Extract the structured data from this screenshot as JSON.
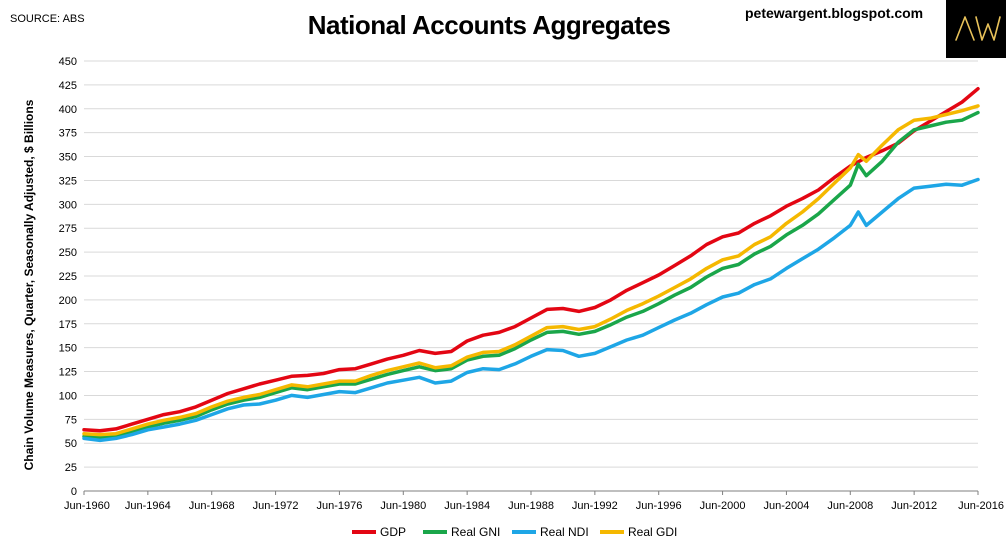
{
  "source": "SOURCE: ABS",
  "title": "National Accounts Aggregates",
  "blog": "petewargent.blogspot.com",
  "logo": "AW",
  "chart_data": {
    "type": "line",
    "title": "National Accounts Aggregates",
    "xlabel": "",
    "ylabel": "Chain Volume Measures, Quarter, Seasonally Adjusted, $ Billions",
    "ylim": [
      0,
      450
    ],
    "xlim": [
      1960,
      2016
    ],
    "yticks": [
      "0",
      "25",
      "50",
      "75",
      "100",
      "125",
      "150",
      "175",
      "200",
      "225",
      "250",
      "275",
      "300",
      "325",
      "350",
      "375",
      "400",
      "425",
      "450"
    ],
    "xticks": [
      "Jun-1960",
      "Jun-1964",
      "Jun-1968",
      "Jun-1972",
      "Jun-1976",
      "Jun-1980",
      "Jun-1984",
      "Jun-1988",
      "Jun-1992",
      "Jun-1996",
      "Jun-2000",
      "Jun-2004",
      "Jun-2008",
      "Jun-2012",
      "Jun-2016"
    ],
    "grid": "horizontal",
    "legend": "bottom",
    "series": [
      {
        "name": "GDP",
        "color": "#e30613",
        "points": [
          [
            1960,
            64
          ],
          [
            1961,
            63
          ],
          [
            1962,
            65
          ],
          [
            1963,
            70
          ],
          [
            1964,
            75
          ],
          [
            1965,
            80
          ],
          [
            1966,
            83
          ],
          [
            1967,
            88
          ],
          [
            1968,
            95
          ],
          [
            1969,
            102
          ],
          [
            1970,
            107
          ],
          [
            1971,
            112
          ],
          [
            1972,
            116
          ],
          [
            1973,
            120
          ],
          [
            1974,
            121
          ],
          [
            1975,
            123
          ],
          [
            1976,
            127
          ],
          [
            1977,
            128
          ],
          [
            1978,
            133
          ],
          [
            1979,
            138
          ],
          [
            1980,
            142
          ],
          [
            1981,
            147
          ],
          [
            1982,
            144
          ],
          [
            1983,
            146
          ],
          [
            1984,
            157
          ],
          [
            1985,
            163
          ],
          [
            1986,
            166
          ],
          [
            1987,
            172
          ],
          [
            1988,
            181
          ],
          [
            1989,
            190
          ],
          [
            1990,
            191
          ],
          [
            1991,
            188
          ],
          [
            1992,
            192
          ],
          [
            1993,
            200
          ],
          [
            1994,
            210
          ],
          [
            1995,
            218
          ],
          [
            1996,
            226
          ],
          [
            1997,
            236
          ],
          [
            1998,
            246
          ],
          [
            1999,
            258
          ],
          [
            2000,
            266
          ],
          [
            2001,
            270
          ],
          [
            2002,
            280
          ],
          [
            2003,
            288
          ],
          [
            2004,
            298
          ],
          [
            2005,
            306
          ],
          [
            2006,
            315
          ],
          [
            2007,
            328
          ],
          [
            2008,
            340
          ],
          [
            2009,
            349
          ],
          [
            2010,
            356
          ],
          [
            2011,
            364
          ],
          [
            2012,
            377
          ],
          [
            2013,
            387
          ],
          [
            2014,
            397
          ],
          [
            2015,
            407
          ],
          [
            2016,
            421
          ]
        ]
      },
      {
        "name": "Real GNI",
        "color": "#1aa64a",
        "points": [
          [
            1960,
            57
          ],
          [
            1961,
            56
          ],
          [
            1962,
            58
          ],
          [
            1963,
            62
          ],
          [
            1964,
            67
          ],
          [
            1965,
            71
          ],
          [
            1966,
            74
          ],
          [
            1967,
            78
          ],
          [
            1968,
            85
          ],
          [
            1969,
            91
          ],
          [
            1970,
            95
          ],
          [
            1971,
            98
          ],
          [
            1972,
            103
          ],
          [
            1973,
            108
          ],
          [
            1974,
            106
          ],
          [
            1975,
            109
          ],
          [
            1976,
            112
          ],
          [
            1977,
            112
          ],
          [
            1978,
            117
          ],
          [
            1979,
            122
          ],
          [
            1980,
            126
          ],
          [
            1981,
            130
          ],
          [
            1982,
            126
          ],
          [
            1983,
            128
          ],
          [
            1984,
            137
          ],
          [
            1985,
            141
          ],
          [
            1986,
            142
          ],
          [
            1987,
            149
          ],
          [
            1988,
            158
          ],
          [
            1989,
            166
          ],
          [
            1990,
            167
          ],
          [
            1991,
            164
          ],
          [
            1992,
            167
          ],
          [
            1993,
            174
          ],
          [
            1994,
            182
          ],
          [
            1995,
            188
          ],
          [
            1996,
            196
          ],
          [
            1997,
            205
          ],
          [
            1998,
            213
          ],
          [
            1999,
            224
          ],
          [
            2000,
            233
          ],
          [
            2001,
            237
          ],
          [
            2002,
            248
          ],
          [
            2003,
            256
          ],
          [
            2004,
            268
          ],
          [
            2005,
            278
          ],
          [
            2006,
            290
          ],
          [
            2007,
            305
          ],
          [
            2008,
            320
          ],
          [
            2008.5,
            342
          ],
          [
            2009,
            330
          ],
          [
            2010,
            345
          ],
          [
            2011,
            365
          ],
          [
            2012,
            378
          ],
          [
            2013,
            382
          ],
          [
            2014,
            386
          ],
          [
            2015,
            388
          ],
          [
            2016,
            396
          ]
        ]
      },
      {
        "name": "Real NDI",
        "color": "#1ea6e6",
        "points": [
          [
            1960,
            55
          ],
          [
            1961,
            53
          ],
          [
            1962,
            55
          ],
          [
            1963,
            59
          ],
          [
            1964,
            64
          ],
          [
            1965,
            67
          ],
          [
            1966,
            70
          ],
          [
            1967,
            74
          ],
          [
            1968,
            80
          ],
          [
            1969,
            86
          ],
          [
            1970,
            90
          ],
          [
            1971,
            91
          ],
          [
            1972,
            95
          ],
          [
            1973,
            100
          ],
          [
            1974,
            98
          ],
          [
            1975,
            101
          ],
          [
            1976,
            104
          ],
          [
            1977,
            103
          ],
          [
            1978,
            108
          ],
          [
            1979,
            113
          ],
          [
            1980,
            116
          ],
          [
            1981,
            119
          ],
          [
            1982,
            113
          ],
          [
            1983,
            115
          ],
          [
            1984,
            124
          ],
          [
            1985,
            128
          ],
          [
            1986,
            127
          ],
          [
            1987,
            133
          ],
          [
            1988,
            141
          ],
          [
            1989,
            148
          ],
          [
            1990,
            147
          ],
          [
            1991,
            141
          ],
          [
            1992,
            144
          ],
          [
            1993,
            151
          ],
          [
            1994,
            158
          ],
          [
            1995,
            163
          ],
          [
            1996,
            171
          ],
          [
            1997,
            179
          ],
          [
            1998,
            186
          ],
          [
            1999,
            195
          ],
          [
            2000,
            203
          ],
          [
            2001,
            207
          ],
          [
            2002,
            216
          ],
          [
            2003,
            222
          ],
          [
            2004,
            233
          ],
          [
            2005,
            243
          ],
          [
            2006,
            253
          ],
          [
            2007,
            265
          ],
          [
            2008,
            278
          ],
          [
            2008.5,
            292
          ],
          [
            2009,
            278
          ],
          [
            2010,
            292
          ],
          [
            2011,
            306
          ],
          [
            2012,
            317
          ],
          [
            2013,
            319
          ],
          [
            2014,
            321
          ],
          [
            2015,
            320
          ],
          [
            2016,
            326
          ]
        ]
      },
      {
        "name": "Real GDI",
        "color": "#f5b800",
        "points": [
          [
            1960,
            60
          ],
          [
            1961,
            59
          ],
          [
            1962,
            60
          ],
          [
            1963,
            65
          ],
          [
            1964,
            70
          ],
          [
            1965,
            74
          ],
          [
            1966,
            77
          ],
          [
            1967,
            81
          ],
          [
            1968,
            88
          ],
          [
            1969,
            94
          ],
          [
            1970,
            98
          ],
          [
            1971,
            101
          ],
          [
            1972,
            106
          ],
          [
            1973,
            111
          ],
          [
            1974,
            109
          ],
          [
            1975,
            112
          ],
          [
            1976,
            115
          ],
          [
            1977,
            115
          ],
          [
            1978,
            121
          ],
          [
            1979,
            126
          ],
          [
            1980,
            130
          ],
          [
            1981,
            134
          ],
          [
            1982,
            129
          ],
          [
            1983,
            131
          ],
          [
            1984,
            140
          ],
          [
            1985,
            145
          ],
          [
            1986,
            146
          ],
          [
            1987,
            153
          ],
          [
            1988,
            162
          ],
          [
            1989,
            171
          ],
          [
            1990,
            172
          ],
          [
            1991,
            169
          ],
          [
            1992,
            172
          ],
          [
            1993,
            180
          ],
          [
            1994,
            189
          ],
          [
            1995,
            196
          ],
          [
            1996,
            204
          ],
          [
            1997,
            213
          ],
          [
            1998,
            222
          ],
          [
            1999,
            233
          ],
          [
            2000,
            242
          ],
          [
            2001,
            246
          ],
          [
            2002,
            258
          ],
          [
            2003,
            266
          ],
          [
            2004,
            280
          ],
          [
            2005,
            292
          ],
          [
            2006,
            306
          ],
          [
            2007,
            322
          ],
          [
            2008,
            338
          ],
          [
            2008.5,
            352
          ],
          [
            2009,
            345
          ],
          [
            2010,
            362
          ],
          [
            2011,
            378
          ],
          [
            2012,
            388
          ],
          [
            2013,
            390
          ],
          [
            2014,
            394
          ],
          [
            2015,
            398
          ],
          [
            2016,
            403
          ]
        ]
      }
    ]
  }
}
